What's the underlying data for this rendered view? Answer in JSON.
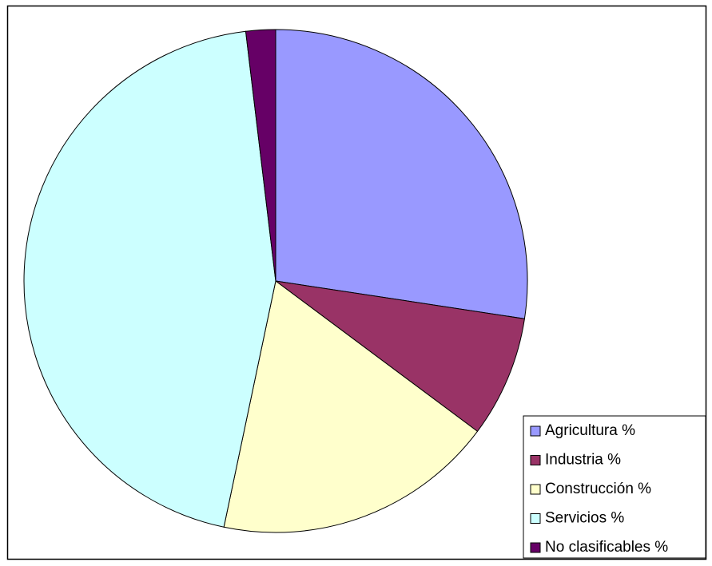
{
  "chart_data": {
    "type": "pie",
    "categories": [
      "Agricultura %",
      "Industria %",
      "Construcción %",
      "Servicios %",
      "No clasificables %"
    ],
    "values": [
      27.4,
      7.8,
      18.1,
      44.8,
      1.9
    ],
    "colors": [
      "#9999ff",
      "#993366",
      "#ffffcc",
      "#ccffff",
      "#660066"
    ],
    "legend": "bottom-right"
  }
}
